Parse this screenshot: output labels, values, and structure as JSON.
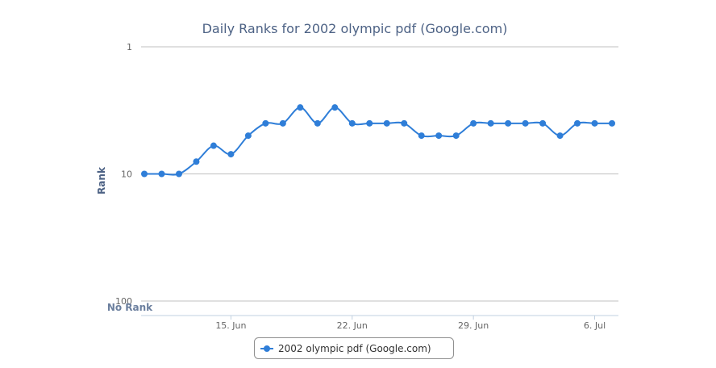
{
  "chart_data": {
    "type": "line",
    "title": "Daily Ranks for 2002 olympic pdf (Google.com)",
    "ylabel": "Rank",
    "xlabel": "",
    "y_scale": "log",
    "y_reversed": true,
    "ylim": [
      1,
      100
    ],
    "y_ticks": [
      "1",
      "10",
      "100"
    ],
    "no_rank_label": "No Rank",
    "x_ticks": [
      {
        "label": "15. Jun",
        "date": "2008-06-15"
      },
      {
        "label": "22. Jun",
        "date": "2008-06-22"
      },
      {
        "label": "29. Jun",
        "date": "2008-06-29"
      },
      {
        "label": "6. Jul",
        "date": "2008-07-06"
      }
    ],
    "grid": true,
    "legend_position": "bottom-center",
    "color": "#2f7ed8",
    "series": [
      {
        "name": "2002 olympic pdf (Google.com)",
        "points": [
          {
            "date": "2008-06-10",
            "rank": 10
          },
          {
            "date": "2008-06-11",
            "rank": 10
          },
          {
            "date": "2008-06-12",
            "rank": 10
          },
          {
            "date": "2008-06-13",
            "rank": 8
          },
          {
            "date": "2008-06-14",
            "rank": 6
          },
          {
            "date": "2008-06-15",
            "rank": 7
          },
          {
            "date": "2008-06-16",
            "rank": 5
          },
          {
            "date": "2008-06-17",
            "rank": 4
          },
          {
            "date": "2008-06-18",
            "rank": 4
          },
          {
            "date": "2008-06-19",
            "rank": 3
          },
          {
            "date": "2008-06-20",
            "rank": 4
          },
          {
            "date": "2008-06-21",
            "rank": 3
          },
          {
            "date": "2008-06-22",
            "rank": 4
          },
          {
            "date": "2008-06-23",
            "rank": 4
          },
          {
            "date": "2008-06-24",
            "rank": 4
          },
          {
            "date": "2008-06-25",
            "rank": 4
          },
          {
            "date": "2008-06-26",
            "rank": 5
          },
          {
            "date": "2008-06-27",
            "rank": 5
          },
          {
            "date": "2008-06-28",
            "rank": 5
          },
          {
            "date": "2008-06-29",
            "rank": 4
          },
          {
            "date": "2008-06-30",
            "rank": 4
          },
          {
            "date": "2008-07-01",
            "rank": 4
          },
          {
            "date": "2008-07-02",
            "rank": 4
          },
          {
            "date": "2008-07-03",
            "rank": 4
          },
          {
            "date": "2008-07-04",
            "rank": 5
          },
          {
            "date": "2008-07-05",
            "rank": 4
          },
          {
            "date": "2008-07-06",
            "rank": 4
          },
          {
            "date": "2008-07-07",
            "rank": 4
          }
        ]
      }
    ]
  }
}
